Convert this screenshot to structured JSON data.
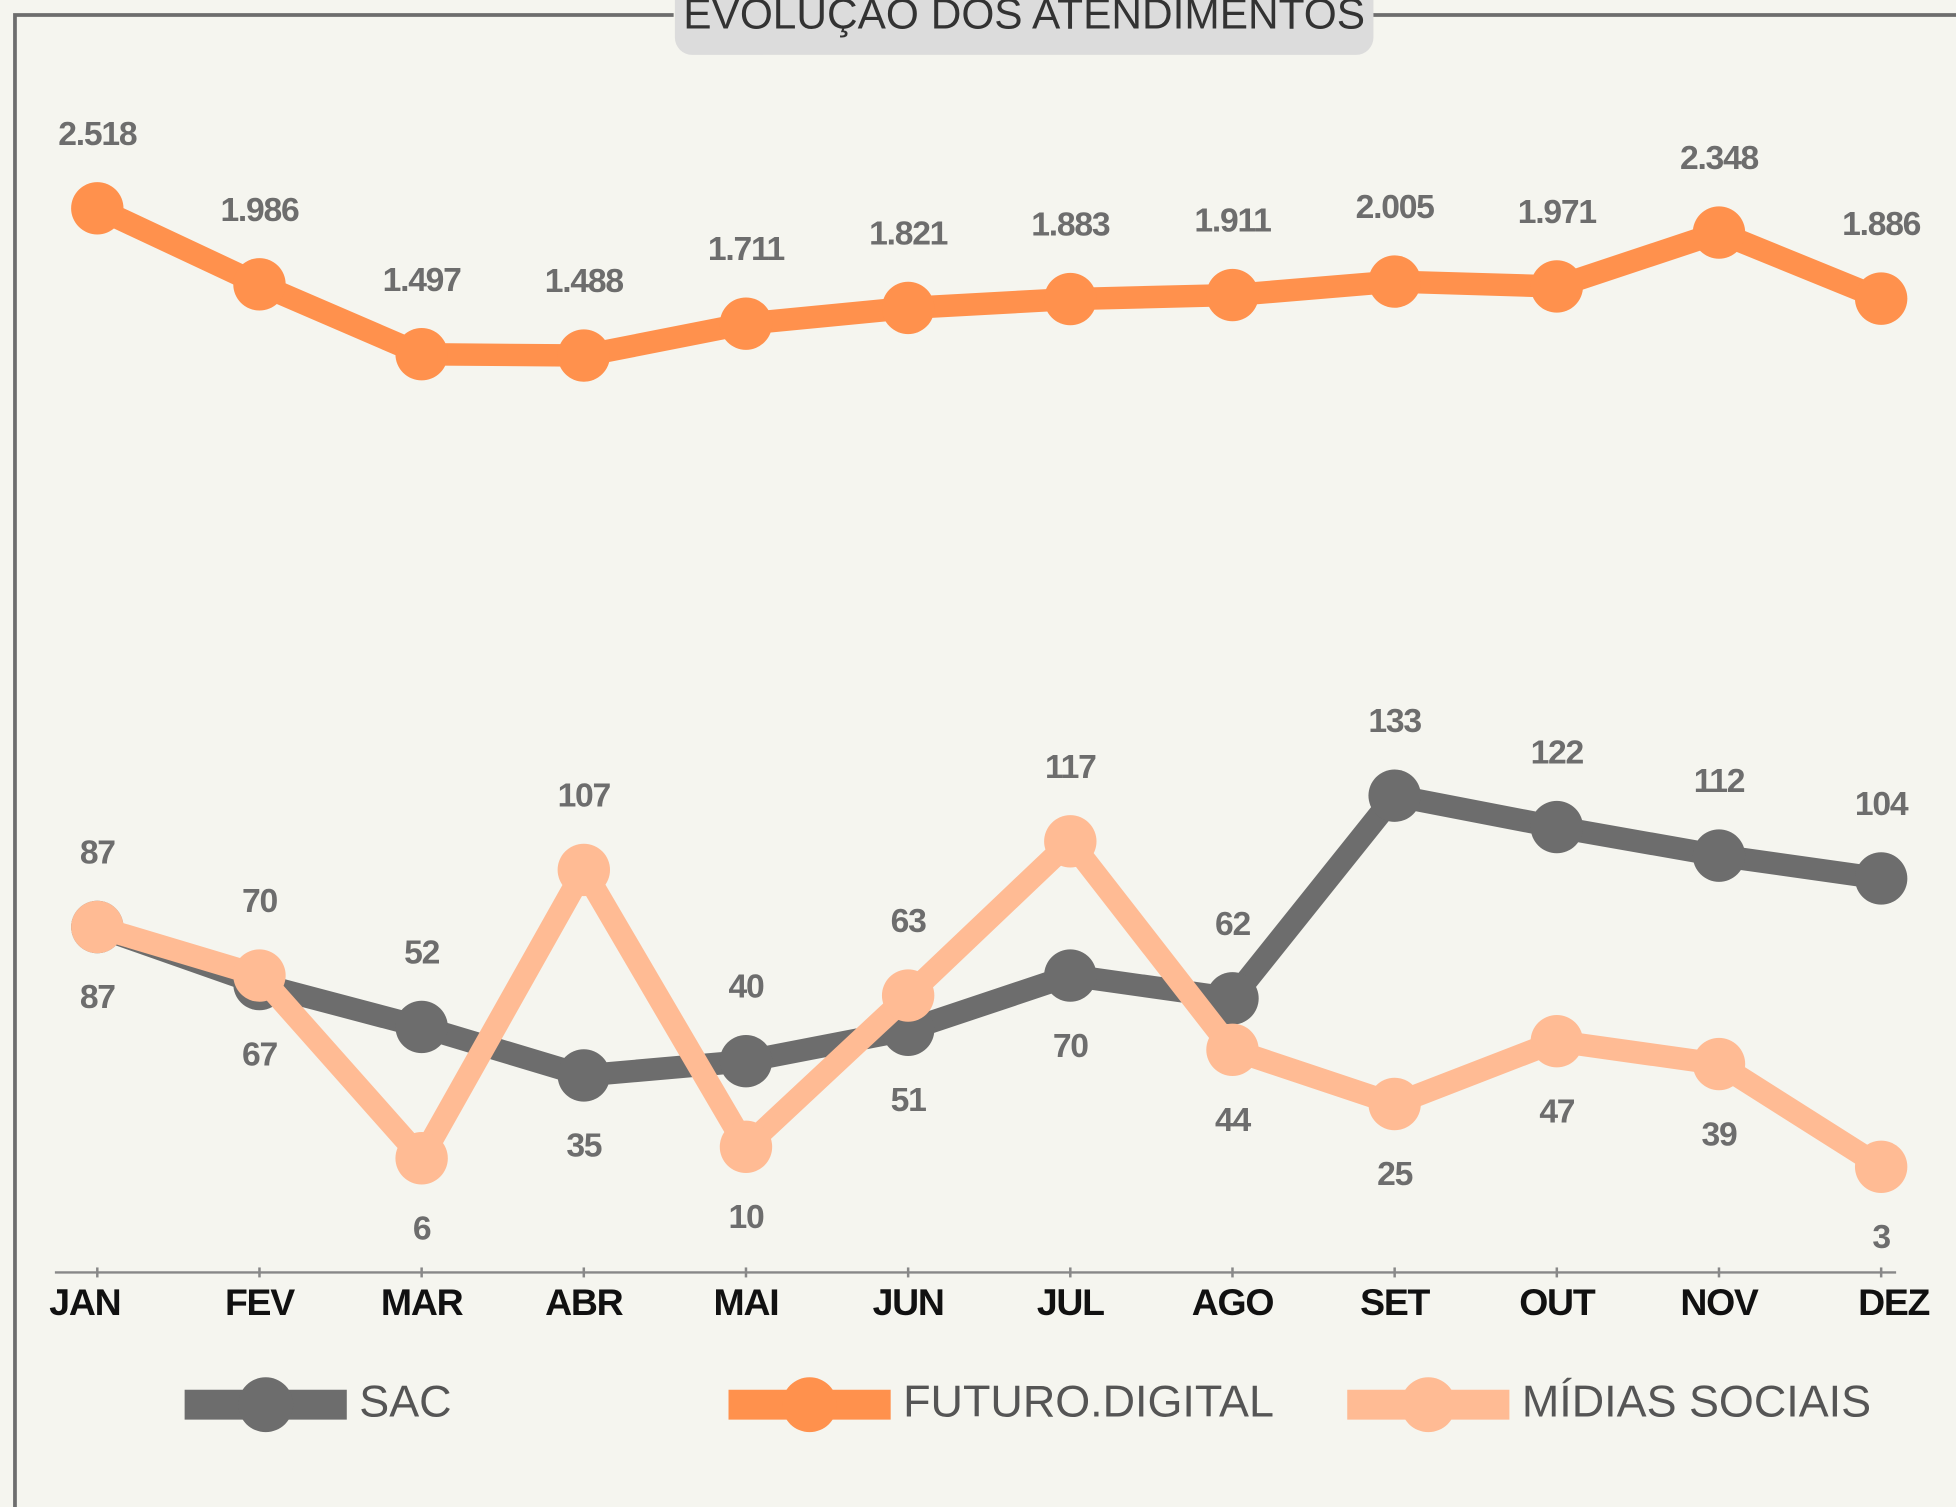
{
  "chart_data": {
    "type": "line",
    "title": "EVOLUÇÃO DOS ATENDIMENTOS",
    "categories": [
      "JAN",
      "FEV",
      "MAR",
      "ABR",
      "MAI",
      "JUN",
      "JUL",
      "AGO",
      "SET",
      "OUT",
      "NOV",
      "DEZ"
    ],
    "ylim": [
      -34,
      368
    ],
    "y2lim": [
      -4926,
      3102
    ],
    "series": [
      {
        "name": "SAC",
        "color": "#6d6d6d",
        "values": [
          87,
          67,
          52,
          35,
          40,
          51,
          70,
          62,
          133,
          122,
          112,
          104
        ]
      },
      {
        "name": "FUTURO.DIGITAL",
        "color": "#ff914d",
        "axis": "y2",
        "values": [
          2518,
          1986,
          1497,
          1488,
          1711,
          1821,
          1883,
          1911,
          2005,
          1971,
          2348,
          1886
        ],
        "value_labels": [
          "2.518",
          "1.986",
          "1.497",
          "1.488",
          "1.711",
          "1.821",
          "1.883",
          "1.911",
          "2.005",
          "1.971",
          "2.348",
          "1.886"
        ]
      },
      {
        "name": "MÍDIAS SOCIAIS",
        "color": "#ffbb94",
        "values": [
          87,
          70,
          6,
          107,
          10,
          63,
          117,
          44,
          25,
          47,
          39,
          3
        ]
      }
    ]
  }
}
